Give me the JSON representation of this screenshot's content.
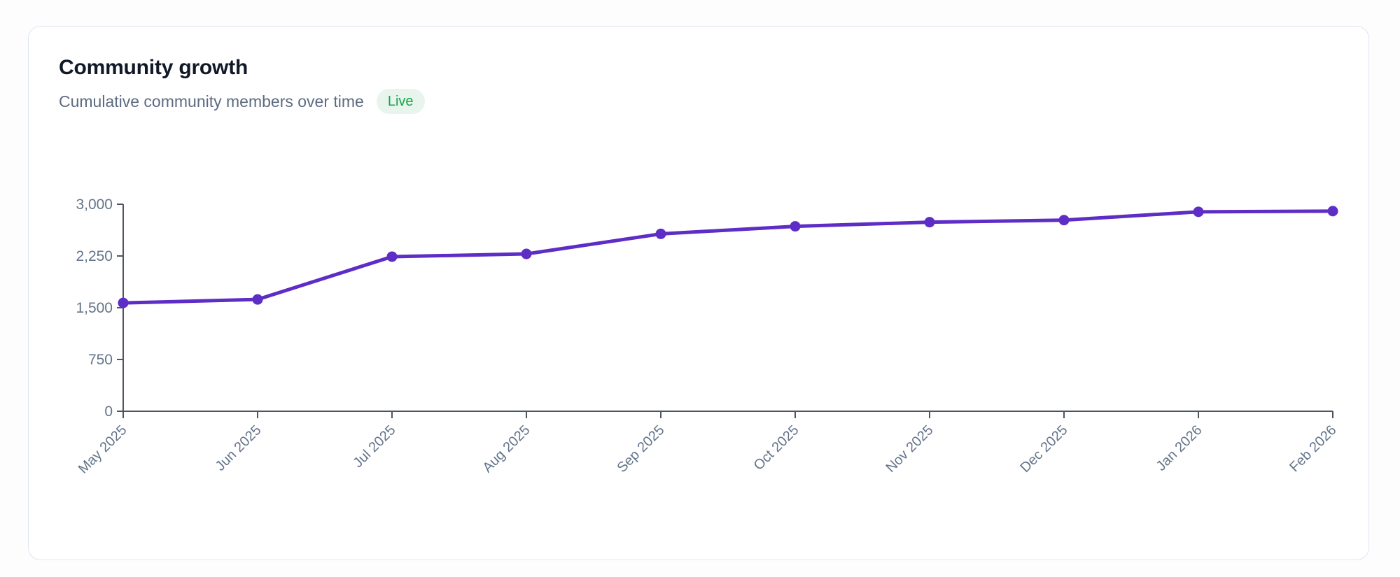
{
  "header": {
    "title": "Community growth",
    "subtitle": "Cumulative community members over time",
    "badge": {
      "label": "Live",
      "text_color": "#16a34a",
      "bg_color": "#e7f5ec"
    }
  },
  "chart_data": {
    "type": "line",
    "title": "Community growth",
    "subtitle": "Cumulative community members over time",
    "x": [
      "May 2025",
      "Jun 2025",
      "Jul 2025",
      "Aug 2025",
      "Sep 2025",
      "Oct 2025",
      "Nov 2025",
      "Dec 2025",
      "Jan 2026",
      "Feb 2026"
    ],
    "values": [
      1570,
      1620,
      2240,
      2280,
      2570,
      2680,
      2740,
      2770,
      2890,
      2900
    ],
    "xlabel": "",
    "ylabel": "",
    "ylim": [
      0,
      3000
    ],
    "yticks": [
      0,
      750,
      1500,
      2250,
      3000
    ],
    "ytick_labels": [
      "0",
      "750",
      "1,500",
      "2,250",
      "3,000"
    ],
    "x_label_angle": -45,
    "grid": false,
    "legend": "none",
    "line_color": "#5d2dc5",
    "point_color": "#5d2dc5",
    "axis_color": "#4c5560",
    "tick_label_color": "#64748b"
  },
  "colors": {
    "page_bg": "#fdfdfe",
    "card_bg": "#ffffff",
    "card_border": "#dfe5ef",
    "title_text": "#111827",
    "subtitle_text": "#5d6b80",
    "accent": "#5d2dc5"
  }
}
